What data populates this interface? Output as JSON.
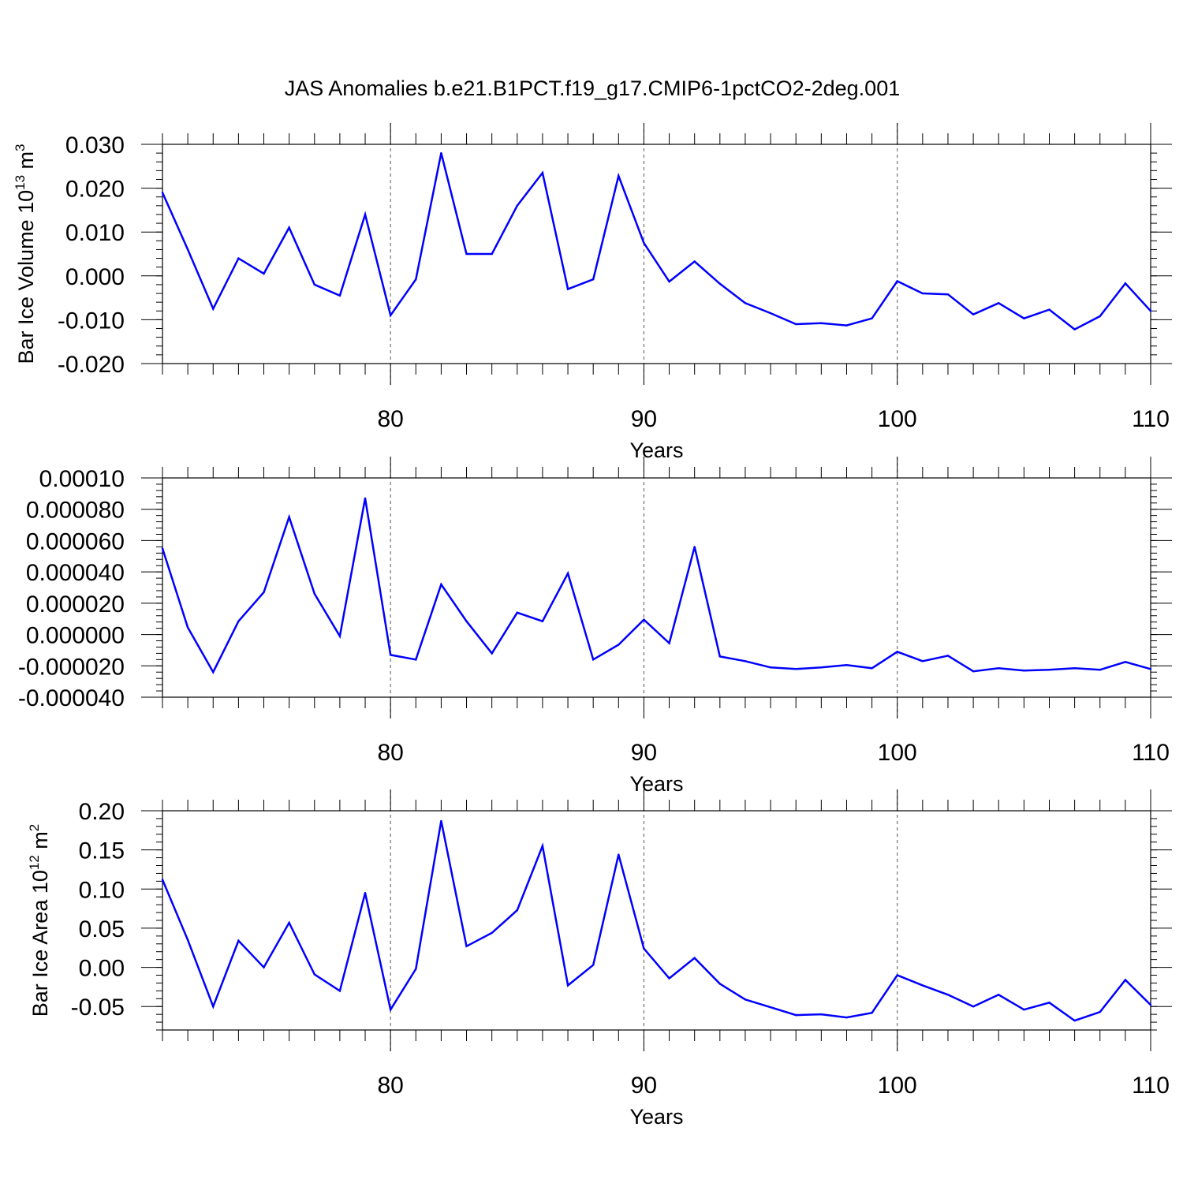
{
  "title": "JAS Anomalies b.e21.B1PCT.f19_g17.CMIP6-1pctCO2-2deg.001",
  "line_color": "#0000ff",
  "chart_data": [
    {
      "type": "line",
      "ylabel": "Bar Ice Volume 10",
      "ylabel_sup": "13",
      "ylabel_unit": " m",
      "ylabel_unit_sup": "3",
      "xlabel": "Years",
      "xlim": [
        71,
        110
      ],
      "ylim": [
        -0.02,
        0.03
      ],
      "yticks": [
        -0.02,
        -0.01,
        0.0,
        0.01,
        0.02,
        0.03
      ],
      "ytick_labels": [
        "-0.020",
        "-0.010",
        "0.000",
        "0.010",
        "0.020",
        "0.030"
      ],
      "xticks": [
        80,
        90,
        100,
        110
      ],
      "xtick_labels": [
        "80",
        "90",
        "100",
        "110"
      ],
      "vgrid": [
        80,
        90,
        100
      ],
      "x": [
        71,
        72,
        73,
        74,
        75,
        76,
        77,
        78,
        79,
        80,
        81,
        82,
        83,
        84,
        85,
        86,
        87,
        88,
        89,
        90,
        91,
        92,
        93,
        94,
        95,
        96,
        97,
        98,
        99,
        100,
        101,
        102,
        103,
        104,
        105,
        106,
        107,
        108,
        109,
        110
      ],
      "values": [
        0.019,
        0.006,
        -0.0075,
        0.004,
        0.0005,
        0.011,
        -0.002,
        -0.0045,
        0.014,
        -0.009,
        -0.0008,
        0.028,
        0.005,
        0.005,
        0.016,
        0.0235,
        -0.003,
        -0.0008,
        0.0228,
        0.0075,
        -0.0013,
        0.0033,
        -0.0018,
        -0.0062,
        -0.0085,
        -0.011,
        -0.0108,
        -0.0113,
        -0.0097,
        -0.0012,
        -0.004,
        -0.0042,
        -0.0088,
        -0.0062,
        -0.0097,
        -0.0077,
        -0.0122,
        -0.0092,
        -0.0017,
        -0.008
      ]
    },
    {
      "type": "line",
      "xlabel": "Years",
      "xlim": [
        71,
        110
      ],
      "ylim": [
        -4e-05,
        0.0001
      ],
      "yticks": [
        -4e-05,
        -2e-05,
        0.0,
        2e-05,
        4e-05,
        6e-05,
        8e-05,
        0.0001
      ],
      "ytick_labels": [
        "-0.000040",
        "-0.000020",
        "0.000000",
        "0.000020",
        "0.000040",
        "0.000060",
        "0.000080",
        "0.00010"
      ],
      "xticks": [
        80,
        90,
        100,
        110
      ],
      "xtick_labels": [
        "80",
        "90",
        "100",
        "110"
      ],
      "vgrid": [
        80,
        90,
        100
      ],
      "x": [
        71,
        72,
        73,
        74,
        75,
        76,
        77,
        78,
        79,
        80,
        81,
        82,
        83,
        84,
        85,
        86,
        87,
        88,
        89,
        90,
        91,
        92,
        93,
        94,
        95,
        96,
        97,
        98,
        99,
        100,
        101,
        102,
        103,
        104,
        105,
        106,
        107,
        108,
        109,
        110
      ],
      "values": [
        5.5e-05,
        4.5e-06,
        -2.4e-05,
        8.5e-06,
        2.7e-05,
        7.5e-05,
        2.6e-05,
        -1e-06,
        8.7e-05,
        -1.3e-05,
        -1.6e-05,
        3.2e-05,
        8.5e-06,
        -1.2e-05,
        1.4e-05,
        8.5e-06,
        3.9e-05,
        -1.6e-05,
        -6.5e-06,
        9.5e-06,
        -5.5e-06,
        5.6e-05,
        -1.4e-05,
        -1.7e-05,
        -2.1e-05,
        -2.2e-05,
        -2.1e-05,
        -1.95e-05,
        -2.15e-05,
        -1.1e-05,
        -1.7e-05,
        -1.35e-05,
        -2.35e-05,
        -2.15e-05,
        -2.3e-05,
        -2.25e-05,
        -2.15e-05,
        -2.25e-05,
        -1.75e-05,
        -2.2e-05
      ]
    },
    {
      "type": "line",
      "ylabel": "Bar Ice Area 10",
      "ylabel_sup": "12",
      "ylabel_unit": " m",
      "ylabel_unit_sup": "2",
      "xlabel": "Years",
      "xlim": [
        71,
        110
      ],
      "ylim": [
        -0.08,
        0.2
      ],
      "yticks": [
        -0.05,
        0.0,
        0.05,
        0.1,
        0.15,
        0.2
      ],
      "ytick_labels": [
        "-0.05",
        "0.00",
        "0.05",
        "0.10",
        "0.15",
        "0.20"
      ],
      "xticks": [
        80,
        90,
        100,
        110
      ],
      "xtick_labels": [
        "80",
        "90",
        "100",
        "110"
      ],
      "vgrid": [
        80,
        90,
        100
      ],
      "x": [
        71,
        72,
        73,
        74,
        75,
        76,
        77,
        78,
        79,
        80,
        81,
        82,
        83,
        84,
        85,
        86,
        87,
        88,
        89,
        90,
        91,
        92,
        93,
        94,
        95,
        96,
        97,
        98,
        99,
        100,
        101,
        102,
        103,
        104,
        105,
        106,
        107,
        108,
        109,
        110
      ],
      "values": [
        0.112,
        0.035,
        -0.05,
        0.034,
        0.0,
        0.057,
        -0.009,
        -0.03,
        0.095,
        -0.054,
        -0.002,
        0.187,
        0.027,
        0.044,
        0.073,
        0.155,
        -0.023,
        0.003,
        0.144,
        0.024,
        -0.014,
        0.012,
        -0.021,
        -0.041,
        -0.051,
        -0.061,
        -0.06,
        -0.064,
        -0.058,
        -0.01,
        -0.023,
        -0.035,
        -0.05,
        -0.035,
        -0.054,
        -0.045,
        -0.068,
        -0.057,
        -0.016,
        -0.048
      ]
    }
  ]
}
